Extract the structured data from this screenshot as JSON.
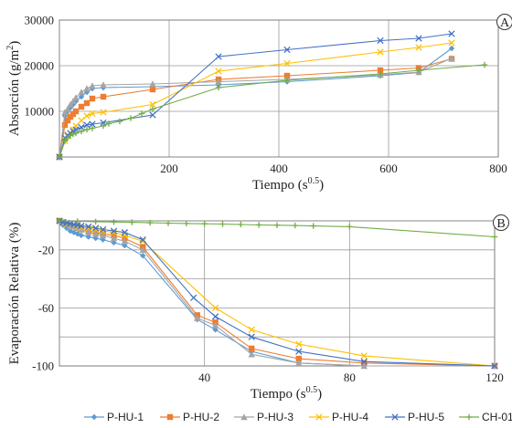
{
  "chart_data": [
    {
      "type": "line",
      "panel_label": "A",
      "ylabel_main": "Absorción (g/m",
      "ylabel_sup": "2",
      "ylabel_end": ")",
      "xlabel_main": "Tiempo (s",
      "xlabel_sup": "0.5",
      "xlabel_end": ")",
      "xlim": [
        0,
        800
      ],
      "ylim": [
        0,
        30000
      ],
      "xticks": [
        200,
        400,
        600,
        800
      ],
      "xtick_labels": [
        "200",
        "400",
        "600",
        "800"
      ],
      "yticks": [
        10000,
        20000,
        30000
      ],
      "ytick_labels": [
        "10000",
        "20000",
        "30000"
      ],
      "grid": true,
      "series": [
        {
          "name": "P-HU-1",
          "x": [
            0,
            10,
            15,
            20,
            25,
            30,
            40,
            50,
            60,
            80,
            170,
            290,
            415,
            585,
            655,
            715
          ],
          "y": [
            0,
            9000,
            10000,
            10800,
            11500,
            12200,
            13200,
            14200,
            15000,
            15200,
            15400,
            15800,
            16500,
            17800,
            18500,
            23800
          ]
        },
        {
          "name": "P-HU-2",
          "x": [
            0,
            10,
            15,
            20,
            25,
            30,
            40,
            50,
            60,
            80,
            170,
            290,
            415,
            585,
            655,
            715
          ],
          "y": [
            0,
            7000,
            8000,
            8800,
            9400,
            10000,
            11000,
            11800,
            12800,
            13200,
            14800,
            17000,
            17800,
            19000,
            19500,
            21500
          ]
        },
        {
          "name": "P-HU-3",
          "x": [
            0,
            10,
            15,
            20,
            25,
            30,
            40,
            50,
            60,
            80,
            170,
            290,
            415,
            585,
            655,
            715
          ],
          "y": [
            0,
            9800,
            10500,
            11500,
            12200,
            13000,
            14200,
            15000,
            15600,
            15800,
            16000,
            16500,
            17000,
            18000,
            18600,
            21600
          ]
        },
        {
          "name": "P-HU-4",
          "x": [
            0,
            10,
            15,
            20,
            25,
            30,
            40,
            50,
            60,
            80,
            170,
            290,
            415,
            585,
            655,
            715
          ],
          "y": [
            0,
            3500,
            4500,
            5200,
            6000,
            6800,
            8000,
            9000,
            9500,
            9800,
            11500,
            18800,
            20500,
            23000,
            24000,
            25000
          ]
        },
        {
          "name": "P-HU-5",
          "x": [
            0,
            10,
            15,
            20,
            25,
            30,
            40,
            50,
            60,
            80,
            170,
            290,
            415,
            585,
            655,
            715
          ],
          "y": [
            0,
            4200,
            4800,
            5200,
            5600,
            6000,
            6500,
            7000,
            7200,
            7500,
            9200,
            22000,
            23500,
            25500,
            26000,
            27000
          ]
        },
        {
          "name": "CH-01",
          "x": [
            0,
            10,
            15,
            20,
            25,
            30,
            40,
            50,
            60,
            80,
            90,
            110,
            130,
            150,
            170,
            290,
            415,
            585,
            655,
            775
          ],
          "y": [
            0,
            3500,
            4200,
            4700,
            5000,
            5200,
            5600,
            6000,
            6300,
            6800,
            7300,
            7800,
            8500,
            9500,
            10500,
            15200,
            16800,
            18200,
            19000,
            20200
          ]
        }
      ]
    },
    {
      "type": "line",
      "panel_label": "B",
      "ylabel_main": "Evaporación Relativa (%)",
      "xlabel_main": "Tiempo (s",
      "xlabel_sup": "0.5",
      "xlabel_end": ")",
      "xlim": [
        0,
        120
      ],
      "ylim": [
        -100,
        0
      ],
      "xticks": [
        40,
        80,
        120
      ],
      "xtick_labels": [
        "40",
        "80",
        "120"
      ],
      "yticks": [
        -100,
        -60,
        -20
      ],
      "ytick_labels": [
        "-100",
        "-60",
        "-20"
      ],
      "gridlines_y": [
        -100,
        -80,
        -60,
        -40,
        -20
      ],
      "grid": true,
      "series": [
        {
          "name": "P-HU-1",
          "x": [
            0,
            1,
            2,
            3,
            4,
            5,
            6,
            8,
            10,
            12,
            15,
            18,
            23,
            38,
            43,
            53,
            66,
            84,
            120
          ],
          "y": [
            0,
            -3,
            -5,
            -7,
            -8,
            -9,
            -10,
            -11,
            -12,
            -13,
            -15,
            -17,
            -24,
            -68,
            -75,
            -90,
            -98,
            -100,
            -100
          ]
        },
        {
          "name": "P-HU-2",
          "x": [
            0,
            1,
            2,
            3,
            4,
            5,
            6,
            8,
            10,
            12,
            15,
            18,
            23,
            38,
            43,
            53,
            66,
            84,
            120
          ],
          "y": [
            0,
            -1,
            -2,
            -3,
            -4,
            -5,
            -6,
            -7,
            -8,
            -9,
            -10,
            -12,
            -18,
            -65,
            -70,
            -88,
            -95,
            -98,
            -100
          ]
        },
        {
          "name": "P-HU-3",
          "x": [
            0,
            1,
            2,
            3,
            4,
            5,
            6,
            8,
            10,
            12,
            15,
            18,
            23,
            38,
            43,
            53,
            66,
            84,
            120
          ],
          "y": [
            0,
            -1,
            -2,
            -3,
            -4,
            -5,
            -6,
            -8,
            -9,
            -10,
            -12,
            -14,
            -20,
            -67,
            -72,
            -92,
            -98,
            -100,
            -100
          ]
        },
        {
          "name": "P-HU-4",
          "x": [
            0,
            1,
            2,
            3,
            4,
            5,
            6,
            8,
            10,
            12,
            15,
            18,
            23,
            43,
            53,
            66,
            84,
            120
          ],
          "y": [
            0,
            -1,
            -2,
            -2.5,
            -3,
            -4,
            -4.5,
            -5,
            -6,
            -7,
            -8,
            -10,
            -14,
            -60,
            -75,
            -85,
            -93,
            -100
          ]
        },
        {
          "name": "P-HU-5",
          "x": [
            0,
            1,
            2,
            3,
            4,
            5,
            6,
            8,
            10,
            12,
            15,
            18,
            23,
            37,
            43,
            53,
            66,
            84,
            120
          ],
          "y": [
            0,
            -1,
            -1.5,
            -2,
            -2.5,
            -3,
            -3.5,
            -4,
            -5,
            -6,
            -7,
            -8,
            -13,
            -53,
            -66,
            -80,
            -90,
            -97,
            -100
          ]
        },
        {
          "name": "CH-01",
          "x": [
            0,
            5,
            10,
            15,
            20,
            25,
            30,
            35,
            40,
            45,
            50,
            55,
            60,
            65,
            70,
            80,
            120
          ],
          "y": [
            0,
            -0.3,
            -0.6,
            -0.8,
            -1,
            -1.3,
            -1.6,
            -1.8,
            -2,
            -2.2,
            -2.5,
            -2.8,
            -3,
            -3.2,
            -3.5,
            -4,
            -11
          ]
        }
      ]
    }
  ],
  "legend": {
    "placement": "bottom",
    "items": [
      {
        "name": "P-HU-1",
        "color": "#5B9BD5",
        "marker": "diamond"
      },
      {
        "name": "P-HU-2",
        "color": "#ED7D31",
        "marker": "square"
      },
      {
        "name": "P-HU-3",
        "color": "#A5A5A5",
        "marker": "triangle"
      },
      {
        "name": "P-HU-4",
        "color": "#FFC000",
        "marker": "x"
      },
      {
        "name": "P-HU-5",
        "color": "#4472C4",
        "marker": "x"
      },
      {
        "name": "CH-01",
        "color": "#70AD47",
        "marker": "plus"
      }
    ]
  },
  "colors": {
    "gridline": "#9a9a9a",
    "axis": "#444444",
    "background": "#ffffff"
  }
}
